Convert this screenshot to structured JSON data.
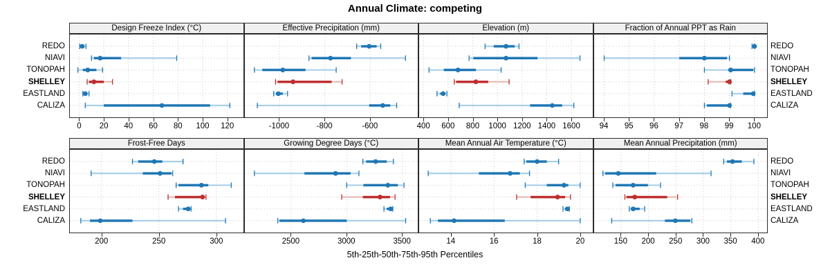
{
  "title": "Annual Climate: competing",
  "caption": "5th-25th-50th-75th-95th Percentiles",
  "sites": [
    "REDO",
    "NIAVI",
    "TONOPAH",
    "SHELLEY",
    "EASTLAND",
    "CALIZA"
  ],
  "highlight_site": "SHELLEY",
  "percentile_labels": [
    "5th",
    "25th",
    "50th",
    "75th",
    "95th"
  ],
  "colors": {
    "blue": "#1f77b4",
    "blue_light": "#aacfe8",
    "red": "#be2f2f",
    "red_light": "#e8b7b0",
    "strip_bg": "#f0f0f0",
    "border": "#2b2b2b",
    "grid": "#c8c8c8"
  },
  "chart_data": {
    "type": "dotplot-percentiles",
    "note": "Each series value array = [5th, 25th, 50th, 75th, 95th] percentiles",
    "panels": [
      {
        "title": "Design Freeze Index (°C)",
        "row": 0,
        "col": 0,
        "xlim": [
          -7.5,
          132.5
        ],
        "ticks": [
          0,
          20,
          40,
          60,
          80,
          100,
          120
        ],
        "series": {
          "REDO": [
            0.5,
            1.5,
            2.5,
            4,
            5.5
          ],
          "NIAVI": [
            10,
            12,
            17,
            34,
            79
          ],
          "TONOPAH": [
            -1,
            3,
            7,
            14,
            19
          ],
          "SHELLEY": [
            6.5,
            8,
            12,
            20,
            27
          ],
          "EASTLAND": [
            3,
            4,
            5,
            6.5,
            8
          ],
          "CALIZA": [
            5,
            20,
            67,
            106,
            122
          ]
        }
      },
      {
        "title": "Effective Precipitation (mm)",
        "row": 0,
        "col": 1,
        "xlim": [
          -1152,
          -391
        ],
        "ticks": [
          -1000,
          -800,
          -600
        ],
        "series": {
          "REDO": [
            -660,
            -640,
            -605,
            -572,
            -554
          ],
          "NIAVI": [
            -870,
            -858,
            -775,
            -685,
            -445
          ],
          "TONOPAH": [
            -1110,
            -1075,
            -985,
            -885,
            -750
          ],
          "SHELLEY": [
            -1017,
            -1008,
            -940,
            -770,
            -724
          ],
          "EASTLAND": [
            -1025,
            -1015,
            -1005,
            -985,
            -964
          ],
          "CALIZA": [
            -1097,
            -605,
            -545,
            -512,
            -484
          ]
        }
      },
      {
        "title": "Elevation (m)",
        "row": 0,
        "col": 2,
        "xlim": [
          365,
          1768
        ],
        "ticks": [
          400,
          600,
          800,
          1000,
          1200,
          1400,
          1600
        ],
        "series": {
          "REDO": [
            900,
            970,
            1070,
            1140,
            1175
          ],
          "NIAVI": [
            770,
            805,
            1070,
            1325,
            1670
          ],
          "TONOPAH": [
            445,
            565,
            680,
            825,
            1030
          ],
          "SHELLEY": [
            650,
            665,
            825,
            925,
            1095
          ],
          "EASTLAND": [
            510,
            535,
            560,
            575,
            590
          ],
          "CALIZA": [
            690,
            1265,
            1445,
            1525,
            1620
          ]
        }
      },
      {
        "title": "Fraction of Annual PPT as Rain",
        "row": 0,
        "col": 3,
        "xlim": [
          93.6,
          100.5
        ],
        "ticks": [
          94,
          95,
          96,
          97,
          98,
          99,
          100
        ],
        "series": {
          "REDO": [
            99.9,
            99.95,
            100,
            100,
            100
          ],
          "NIAVI": [
            94,
            97,
            98,
            98.9,
            99
          ],
          "TONOPAH": [
            98,
            98.95,
            99.05,
            99.95,
            100
          ],
          "SHELLEY": [
            98.15,
            98.85,
            99,
            99,
            99.05
          ],
          "EASTLAND": [
            99.1,
            99.55,
            99.95,
            100,
            100
          ],
          "CALIZA": [
            98,
            98.1,
            99,
            99,
            99.05
          ]
        }
      },
      {
        "title": "Frost-Free Days",
        "row": 1,
        "col": 0,
        "xlim": [
          172.5,
          323
        ],
        "ticks": [
          200,
          250,
          300
        ],
        "series": {
          "REDO": [
            227,
            232,
            246,
            253,
            271
          ],
          "NIAVI": [
            191,
            236,
            251,
            261,
            262
          ],
          "TONOPAH": [
            265,
            267,
            287,
            293,
            313
          ],
          "SHELLEY": [
            258,
            264,
            288,
            290,
            291
          ],
          "EASTLAND": [
            267,
            271,
            275.5,
            276.5,
            278
          ],
          "CALIZA": [
            182,
            190,
            199,
            227,
            308
          ]
        }
      },
      {
        "title": "Growing Degree Days (°C)",
        "row": 1,
        "col": 1,
        "xlim": [
          2084,
          3639
        ],
        "ticks": [
          2500,
          3000,
          3500
        ],
        "series": {
          "REDO": [
            3145,
            3175,
            3260,
            3360,
            3420
          ],
          "NIAVI": [
            2170,
            2620,
            2900,
            3035,
            3110
          ],
          "TONOPAH": [
            3000,
            3150,
            3370,
            3460,
            3515
          ],
          "SHELLEY": [
            2955,
            3145,
            3300,
            3390,
            3435
          ],
          "EASTLAND": [
            3335,
            3360,
            3395,
            3410,
            3415
          ],
          "CALIZA": [
            2380,
            2395,
            2610,
            3000,
            3530
          ]
        }
      },
      {
        "title": "Mean Annual Air Temperature (°C)",
        "row": 1,
        "col": 2,
        "xlim": [
          12.53,
          20.55
        ],
        "ticks": [
          14,
          16,
          18,
          20
        ],
        "series": {
          "REDO": [
            17.4,
            17.5,
            18,
            18.45,
            19
          ],
          "NIAVI": [
            12.95,
            15.3,
            16.75,
            17.2,
            17.65
          ],
          "TONOPAH": [
            17.45,
            18.45,
            19.25,
            19.45,
            20
          ],
          "SHELLEY": [
            17.05,
            17.7,
            18.95,
            19.3,
            19.55
          ],
          "EASTLAND": [
            19.2,
            19.3,
            19.4,
            19.45,
            19.5
          ],
          "CALIZA": [
            13.05,
            13.4,
            14.15,
            16.5,
            20
          ]
        }
      },
      {
        "title": "Mean Annual Precipitation (mm)",
        "row": 1,
        "col": 3,
        "xlim": [
          101,
          416
        ],
        "ticks": [
          150,
          200,
          250,
          300,
          350,
          400
        ],
        "series": {
          "REDO": [
            337,
            343,
            353,
            370,
            392
          ],
          "NIAVI": [
            117,
            121,
            145,
            214,
            314
          ],
          "TONOPAH": [
            135,
            140,
            172,
            199,
            222
          ],
          "SHELLEY": [
            157,
            160,
            175,
            234,
            253
          ],
          "EASTLAND": [
            165,
            168,
            172,
            184,
            193
          ],
          "CALIZA": [
            133,
            230,
            249,
            276,
            279
          ]
        }
      }
    ]
  }
}
